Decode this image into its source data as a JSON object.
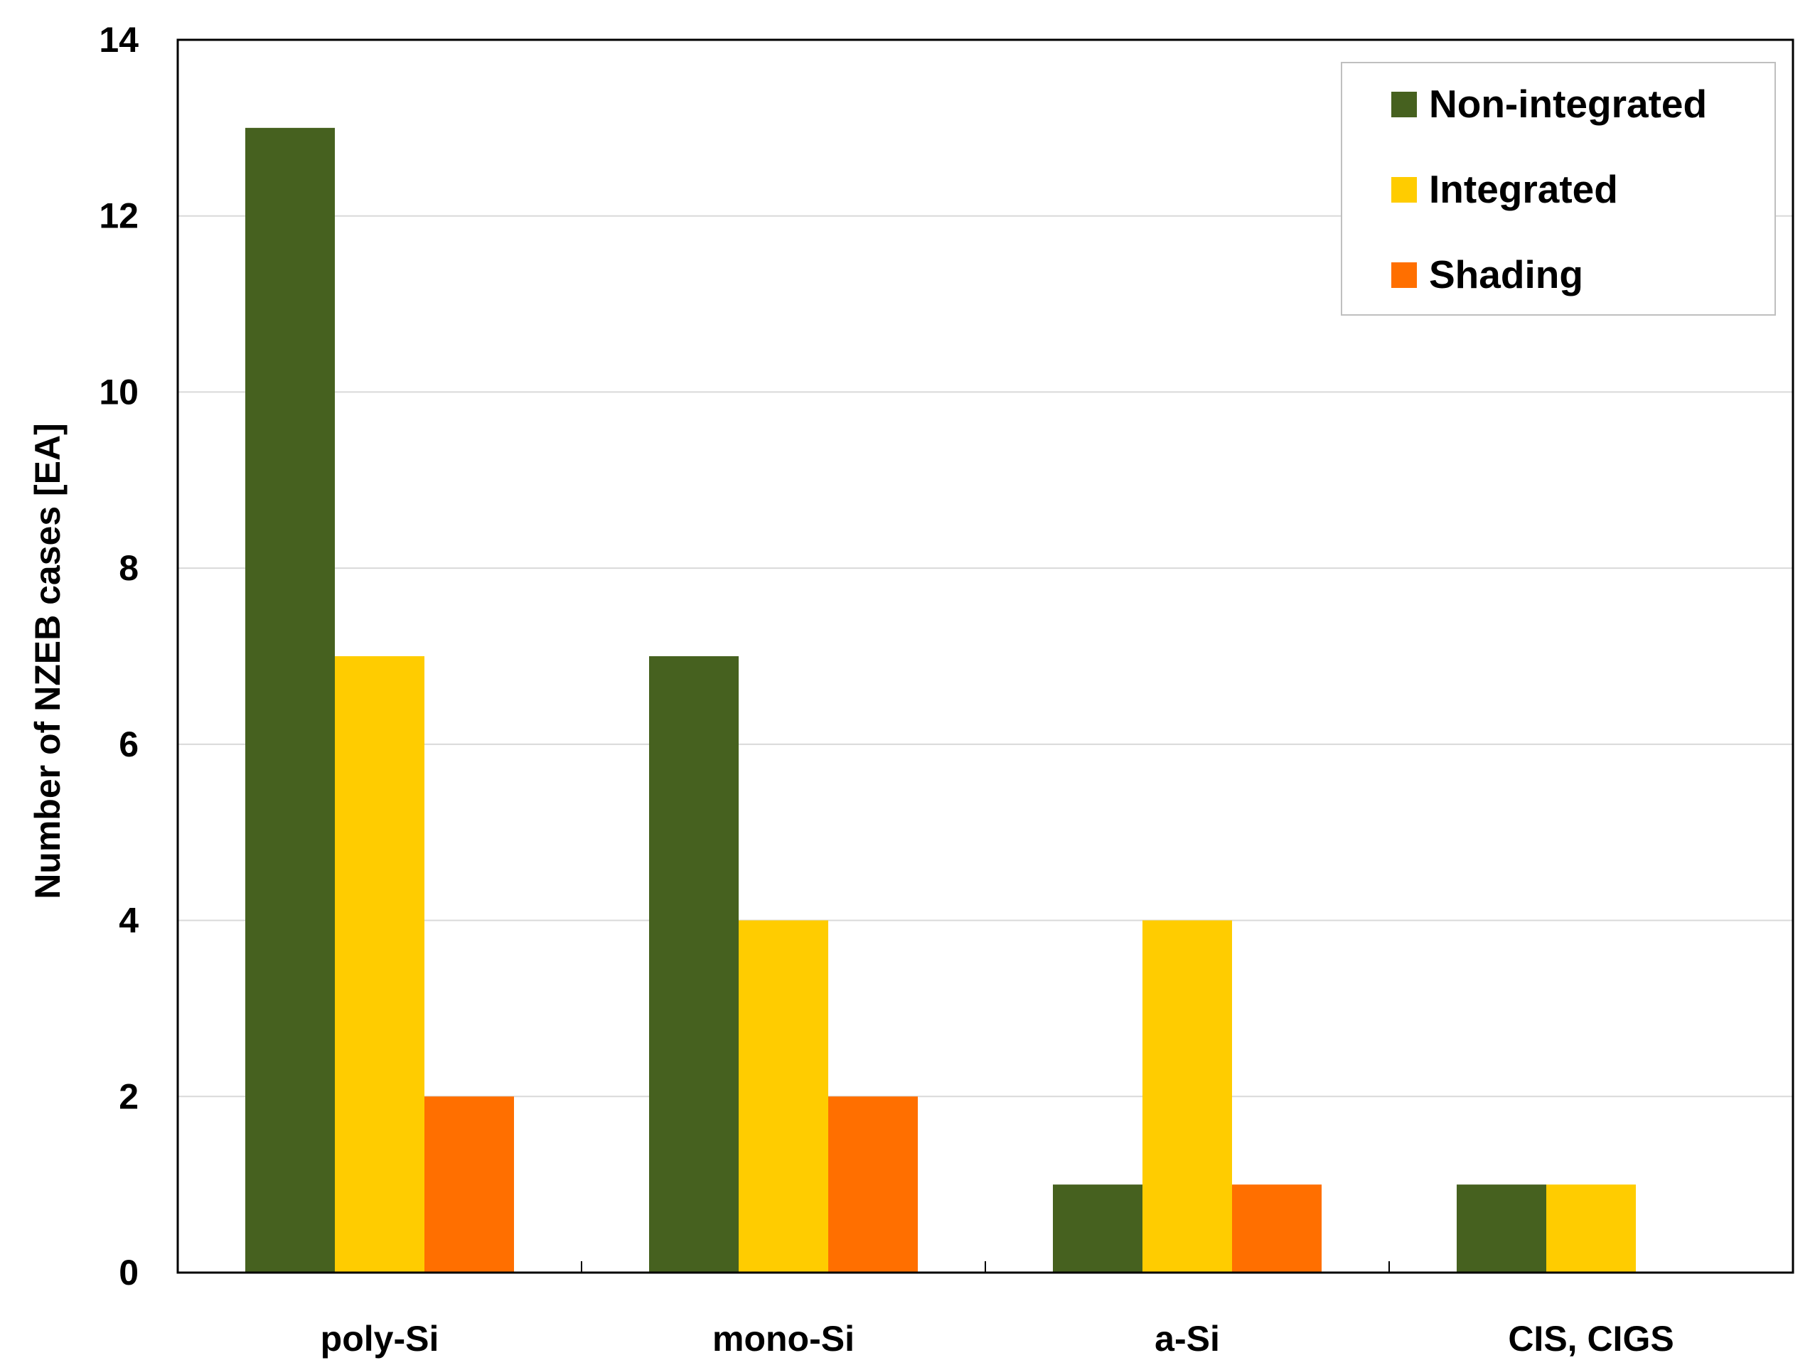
{
  "chart_data": {
    "type": "bar",
    "title": "",
    "xlabel": "",
    "ylabel": "Number of NZEB cases [EA]",
    "categories": [
      "poly-Si",
      "mono-Si",
      "a-Si",
      "CIS, CIGS"
    ],
    "series": [
      {
        "name": "Non-integrated",
        "color": "#46611f",
        "values": [
          13,
          7,
          1,
          1
        ]
      },
      {
        "name": "Integrated",
        "color": "#ffcc00",
        "values": [
          7,
          4,
          4,
          1
        ]
      },
      {
        "name": "Shading",
        "color": "#ff6f00",
        "values": [
          2,
          2,
          1,
          0
        ]
      }
    ],
    "ylim": [
      0,
      14
    ],
    "yticks": [
      0,
      2,
      4,
      6,
      8,
      10,
      12,
      14
    ],
    "grid": true,
    "legend_position": "top-right"
  }
}
